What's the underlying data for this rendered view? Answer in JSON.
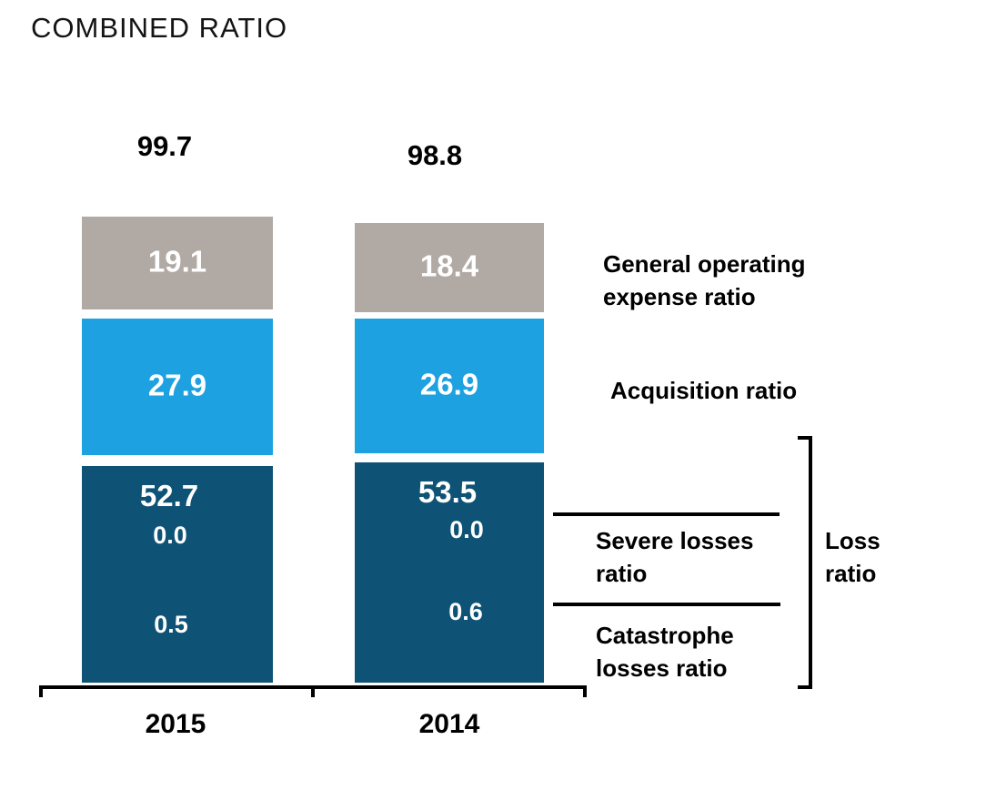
{
  "title": "COMBINED RATIO",
  "colors": {
    "general_operating_gray": "#b1a9a4",
    "acquisition_light_blue": "#1ea1e0",
    "loss_dark_blue": "#0e5276",
    "axis_black": "#000000",
    "value_text_white": "#ffffff"
  },
  "chart_data": {
    "type": "bar",
    "stacked": true,
    "title": "COMBINED RATIO",
    "categories": [
      "2015",
      "2014"
    ],
    "bar_totals": [
      "99.7",
      "98.8"
    ],
    "series": [
      {
        "name": "General operating expense ratio",
        "color": "#b1a9a4",
        "values": [
          "19.1",
          "18.4"
        ]
      },
      {
        "name": "Acquisition ratio",
        "color": "#1ea1e0",
        "values": [
          "27.9",
          "26.9"
        ]
      },
      {
        "name": "Loss ratio",
        "color": "#0e5276",
        "values": [
          "52.7",
          "53.5"
        ],
        "severe_losses_values": [
          "0.0",
          "0.0"
        ],
        "catastrophe_losses_values": [
          "0.5",
          "0.6"
        ]
      }
    ],
    "legend_position": "right",
    "gridlines": false,
    "axis": {
      "baseline": true,
      "tick_count": 3
    }
  },
  "side_labels": {
    "general_line1": "General operating",
    "general_line2": "expense ratio",
    "acquisition": "Acquisition ratio",
    "severe_line1": "Severe losses",
    "severe_line2": "ratio",
    "catastrophe_line1": "Catastrophe",
    "catastrophe_line2": "losses ratio",
    "loss_line1": "Loss",
    "loss_line2": "ratio"
  }
}
